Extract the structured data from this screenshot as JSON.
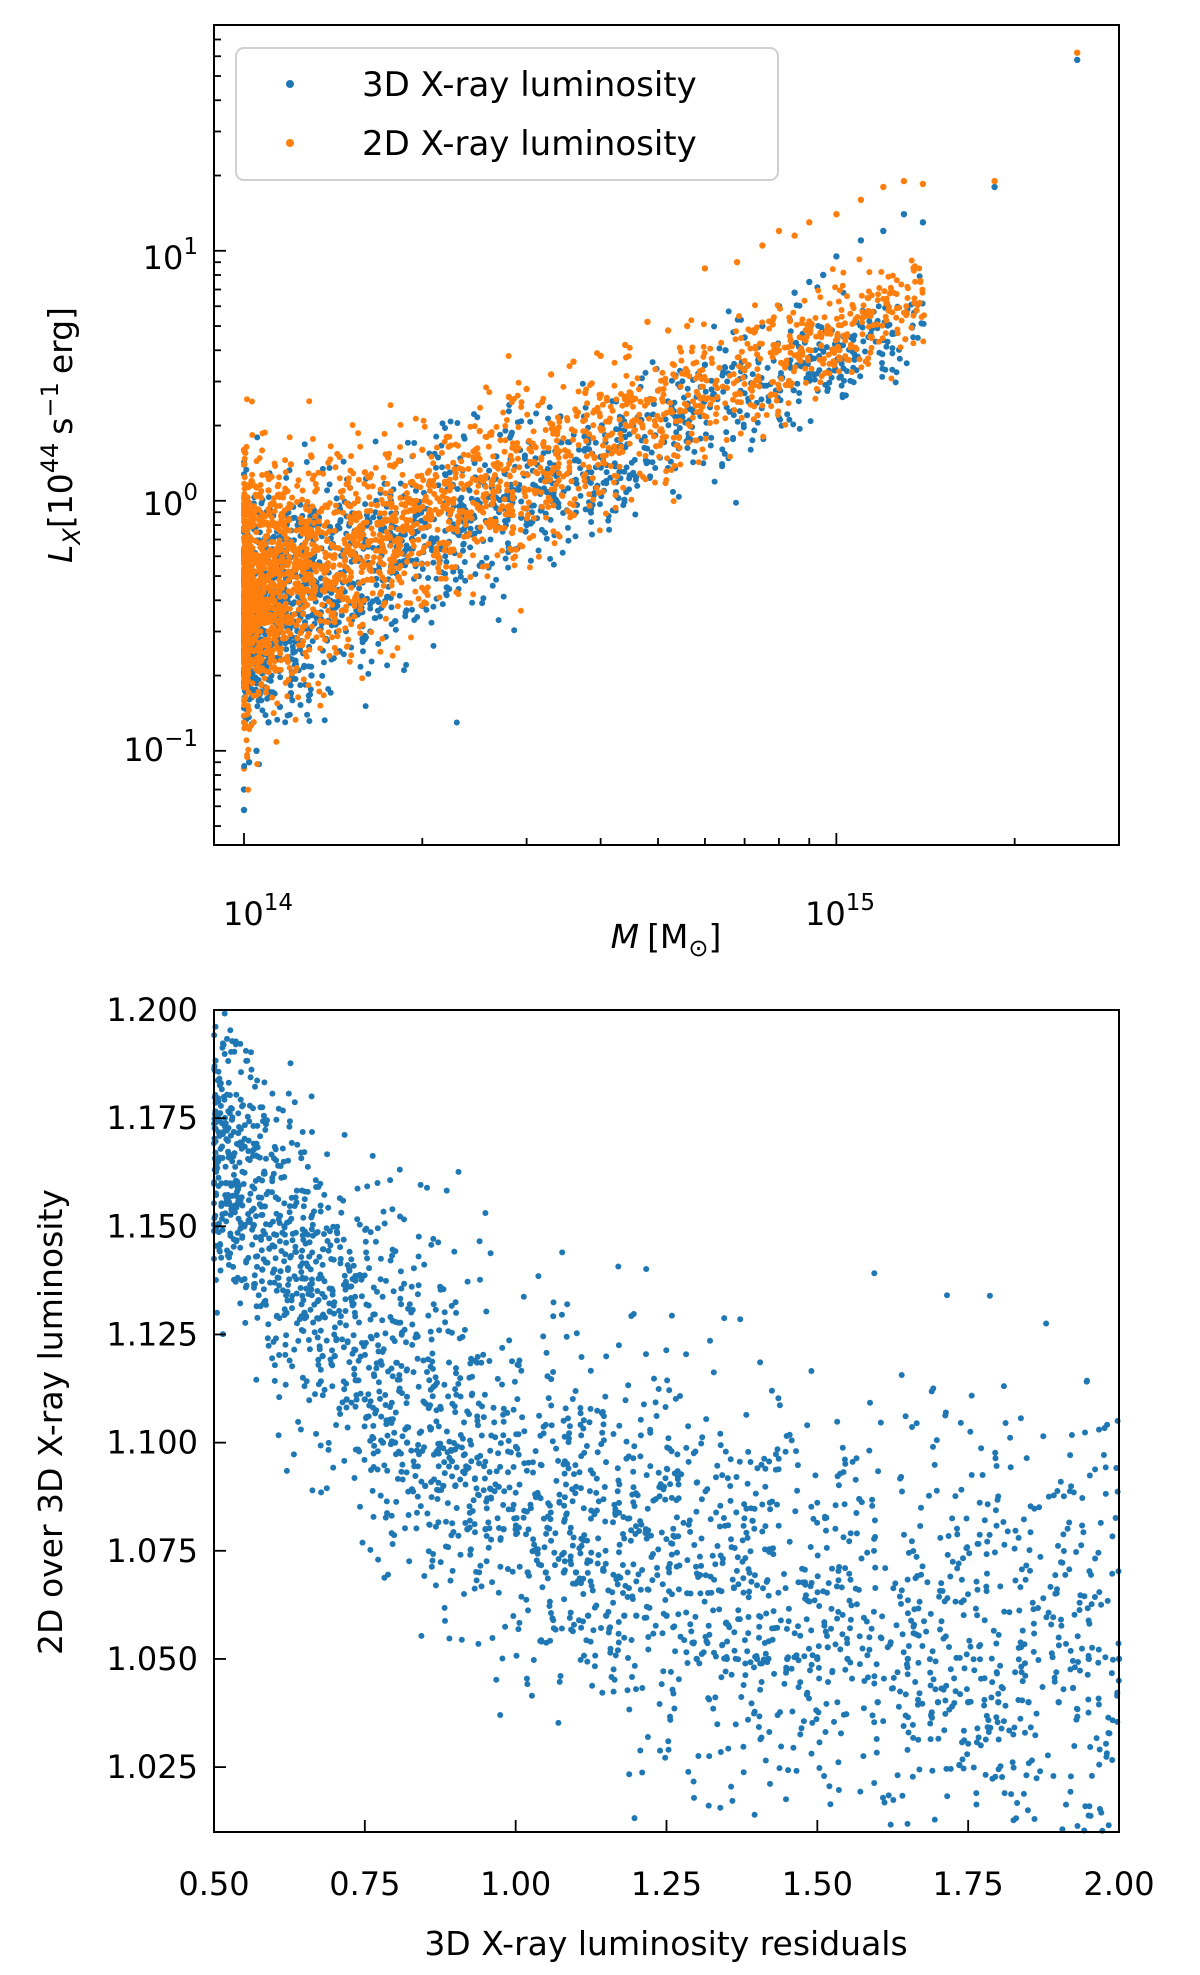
{
  "chart_data": [
    {
      "type": "scatter",
      "title": "",
      "xlabel": {
        "var": "M",
        "unit": "[M",
        "unit_sub": "⊙",
        "close": "]"
      },
      "ylabel": {
        "var": "L",
        "var_sub": "X",
        "prefix": "[10",
        "exp1": "44",
        "s": "s",
        "exp2": "−1",
        "rest": "erg]"
      },
      "x_scale": "log",
      "y_scale": "log",
      "xlim": [
        89000000000000.0,
        3000000000000000.0
      ],
      "ylim": [
        0.042,
        80
      ],
      "x_ticks": [
        {
          "value": 100000000000000.0,
          "base": "10",
          "exp": "14"
        },
        {
          "value": 1000000000000000.0,
          "base": "10",
          "exp": "15"
        }
      ],
      "y_ticks": [
        {
          "value": 0.1,
          "base": "10",
          "exp": "−1"
        },
        {
          "value": 1,
          "base": "10",
          "exp": "0"
        },
        {
          "value": 10,
          "base": "10",
          "exp": "1"
        }
      ],
      "legend": {
        "placement": "upper-left",
        "entries": [
          "3D X-ray luminosity",
          "2D X-ray luminosity"
        ]
      },
      "grid": false,
      "colors": {
        "series_3d": "#1f77b4",
        "series_2d": "#ff7f0e"
      },
      "series": [
        {
          "name": "3D X-ray luminosity",
          "x": [
            100000000000000.0,
            100000000000000.0,
            102000000000000.0,
            105000000000000.0,
            110000000000000.0,
            115000000000000.0,
            120000000000000.0,
            130000000000000.0,
            145000000000000.0,
            160000000000000.0,
            180000000000000.0,
            200000000000000.0,
            220000000000000.0,
            250000000000000.0,
            280000000000000.0,
            300000000000000.0,
            330000000000000.0,
            360000000000000.0,
            400000000000000.0,
            440000000000000.0,
            480000000000000.0,
            520000000000000.0,
            560000000000000.0,
            600000000000000.0,
            650000000000000.0,
            700000000000000.0,
            750000000000000.0,
            800000000000000.0,
            850000000000000.0,
            900000000000000.0,
            950000000000000.0,
            1000000000000000.0,
            1100000000000000.0,
            1200000000000000.0,
            1300000000000000.0,
            1400000000000000.0,
            1850000000000000.0,
            2550000000000000.0
          ],
          "y": [
            0.058,
            0.07,
            0.09,
            0.1,
            0.13,
            0.15,
            0.17,
            0.2,
            0.25,
            0.28,
            0.33,
            0.38,
            0.45,
            0.55,
            0.65,
            0.8,
            1.0,
            1.2,
            1.5,
            1.8,
            2.2,
            1.35,
            2.4,
            3.5,
            4.0,
            4.5,
            5.0,
            6.0,
            6.8,
            7.5,
            8.0,
            9.5,
            11.0,
            12.0,
            14.0,
            13.0,
            18.0,
            58.0
          ]
        },
        {
          "name": "2D X-ray luminosity",
          "x": [
            100000000000000.0,
            100000000000000.0,
            103000000000000.0,
            105000000000000.0,
            110000000000000.0,
            120000000000000.0,
            130000000000000.0,
            145000000000000.0,
            160000000000000.0,
            180000000000000.0,
            200000000000000.0,
            220000000000000.0,
            250000000000000.0,
            280000000000000.0,
            300000000000000.0,
            330000000000000.0,
            360000000000000.0,
            400000000000000.0,
            440000000000000.0,
            480000000000000.0,
            520000000000000.0,
            560000000000000.0,
            600000000000000.0,
            680000000000000.0,
            750000000000000.0,
            800000000000000.0,
            850000000000000.0,
            900000000000000.0,
            1000000000000000.0,
            1100000000000000.0,
            1200000000000000.0,
            1300000000000000.0,
            1400000000000000.0,
            1850000000000000.0,
            2550000000000000.0
          ],
          "y": [
            0.085,
            1.6,
            1.2,
            0.9,
            1.1,
            1.4,
            1.5,
            1.5,
            1.3,
            1.4,
            1.6,
            1.8,
            1.9,
            2.6,
            2.8,
            3.2,
            3.6,
            3.8,
            4.2,
            5.2,
            4.8,
            5.0,
            8.5,
            9.0,
            10.5,
            12.0,
            11.5,
            13.0,
            14.0,
            16.0,
            18.0,
            19.0,
            18.5,
            19.0,
            62.0
          ]
        }
      ]
    },
    {
      "type": "scatter",
      "title": "",
      "xlabel": "3D X-ray luminosity residuals",
      "ylabel": "2D over 3D X-ray luminosity",
      "xlim": [
        0.5,
        2.0
      ],
      "ylim": [
        1.01,
        1.2
      ],
      "x_ticks": [
        "0.50",
        "0.75",
        "1.00",
        "1.25",
        "1.50",
        "1.75",
        "2.00"
      ],
      "y_ticks": [
        "1.025",
        "1.050",
        "1.075",
        "1.100",
        "1.125",
        "1.150",
        "1.175",
        "1.200"
      ],
      "grid": false,
      "colors": {
        "points": "#1f77b4"
      },
      "series": [
        {
          "x": [
            0.52,
            0.55,
            0.58,
            0.6,
            0.62,
            0.65,
            0.68,
            0.7,
            0.72,
            0.75,
            0.78,
            0.8,
            0.82,
            0.85,
            0.88,
            0.9,
            0.92,
            0.95,
            0.98,
            1.0,
            1.02,
            1.05,
            1.08,
            1.1,
            1.12,
            1.15,
            1.18,
            1.2,
            1.25,
            1.3,
            1.35,
            1.4,
            1.45,
            1.5,
            1.55,
            1.6,
            1.65,
            1.7,
            1.75,
            1.8,
            1.85,
            1.9,
            1.95,
            2.0
          ],
          "y": [
            1.16,
            1.15,
            1.14,
            1.14,
            1.13,
            1.13,
            1.12,
            1.12,
            1.11,
            1.11,
            1.1,
            1.1,
            1.1,
            1.09,
            1.09,
            1.09,
            1.08,
            1.08,
            1.08,
            1.08,
            1.07,
            1.07,
            1.07,
            1.07,
            1.06,
            1.06,
            1.06,
            1.06,
            1.06,
            1.05,
            1.05,
            1.05,
            1.05,
            1.05,
            1.05,
            1.04,
            1.05,
            1.04,
            1.04,
            1.04,
            1.04,
            1.04,
            1.05,
            1.05
          ]
        }
      ]
    }
  ]
}
